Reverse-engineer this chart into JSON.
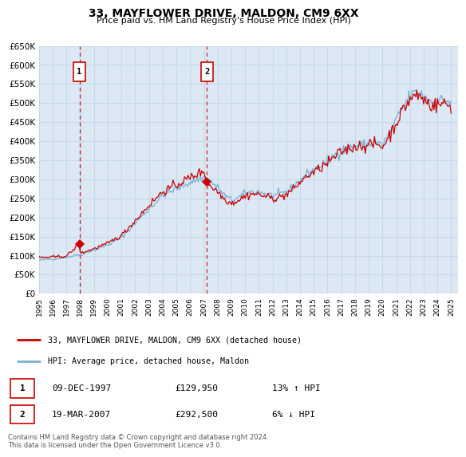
{
  "title": "33, MAYFLOWER DRIVE, MALDON, CM9 6XX",
  "subtitle": "Price paid vs. HM Land Registry's House Price Index (HPI)",
  "ylim": [
    0,
    650000
  ],
  "yticks": [
    0,
    50000,
    100000,
    150000,
    200000,
    250000,
    300000,
    350000,
    400000,
    450000,
    500000,
    550000,
    600000,
    650000
  ],
  "xlim_start": 1995.0,
  "xlim_end": 2025.5,
  "plot_bg_color": "#dce9f5",
  "grid_color": "#c8d8e8",
  "sale1_date": 1997.94,
  "sale1_price": 129950,
  "sale1_label": "1",
  "sale1_hpi_pct": "13% ↑ HPI",
  "sale1_date_str": "09-DEC-1997",
  "sale2_date": 2007.22,
  "sale2_price": 292500,
  "sale2_label": "2",
  "sale2_hpi_pct": "6% ↓ HPI",
  "sale2_date_str": "19-MAR-2007",
  "line1_color": "#cc0000",
  "line2_color": "#7ab0d4",
  "marker_color": "#cc0000",
  "vline_color": "#cc0000",
  "box_edge_color": "#cc0000",
  "legend_label1": "33, MAYFLOWER DRIVE, MALDON, CM9 6XX (detached house)",
  "legend_label2": "HPI: Average price, detached house, Maldon",
  "footnote": "Contains HM Land Registry data © Crown copyright and database right 2024.\nThis data is licensed under the Open Government Licence v3.0."
}
